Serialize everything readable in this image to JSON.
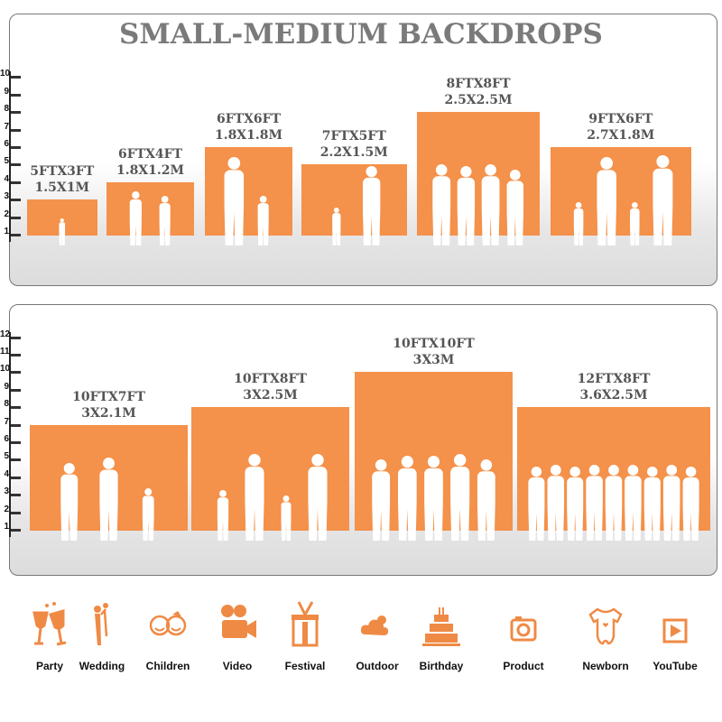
{
  "title": "SMALL-MEDIUM BACKDROPS",
  "top_panel": {
    "scale_ticks": [
      "1",
      "2",
      "3",
      "4",
      "5",
      "6",
      "7",
      "8",
      "9",
      "10"
    ],
    "backdrops": [
      {
        "ft": "5FTX3FT",
        "m": "1.5X1M",
        "width_ft": 5,
        "height_ft": 3
      },
      {
        "ft": "6FTX4FT",
        "m": "1.8X1.2M",
        "width_ft": 6,
        "height_ft": 4
      },
      {
        "ft": "6FTX6FT",
        "m": "1.8X1.8M",
        "width_ft": 6,
        "height_ft": 6
      },
      {
        "ft": "7FTX5FT",
        "m": "2.2X1.5M",
        "width_ft": 7,
        "height_ft": 5
      },
      {
        "ft": "8FTX8FT",
        "m": "2.5X2.5M",
        "width_ft": 8,
        "height_ft": 8
      },
      {
        "ft": "9FTX6FT",
        "m": "2.7X1.8M",
        "width_ft": 9,
        "height_ft": 6
      }
    ]
  },
  "bottom_panel": {
    "scale_ticks": [
      "1",
      "2",
      "3",
      "4",
      "5",
      "6",
      "7",
      "8",
      "9",
      "10",
      "11",
      "12"
    ],
    "backdrops": [
      {
        "ft": "10FTX7FT",
        "m": "3X2.1M",
        "width_ft": 10,
        "height_ft": 7
      },
      {
        "ft": "10FTX8FT",
        "m": "3X2.5M",
        "width_ft": 10,
        "height_ft": 8
      },
      {
        "ft": "10FTX10FT",
        "m": "3X3M",
        "width_ft": 10,
        "height_ft": 10
      },
      {
        "ft": "12FTX8FT",
        "m": "3.6X2.5M",
        "width_ft": 12,
        "height_ft": 8
      }
    ]
  },
  "uses": [
    {
      "label": "Party",
      "icon": "champagne-glasses-icon"
    },
    {
      "label": "Wedding",
      "icon": "wedding-couple-icon"
    },
    {
      "label": "Children",
      "icon": "children-faces-icon"
    },
    {
      "label": "Video",
      "icon": "film-camera-icon"
    },
    {
      "label": "Festival",
      "icon": "gift-box-icon"
    },
    {
      "label": "Outdoor",
      "icon": "cloud-icon"
    },
    {
      "label": "Birthday",
      "icon": "birthday-cake-icon"
    },
    {
      "label": "Product",
      "icon": "camera-icon"
    },
    {
      "label": "Newborn",
      "icon": "baby-onesie-icon"
    },
    {
      "label": "YouTube",
      "icon": "play-button-icon"
    }
  ],
  "colors": {
    "backdrop": "#f4914a",
    "icon": "#ef8a45",
    "title": "#7a7a7a"
  }
}
